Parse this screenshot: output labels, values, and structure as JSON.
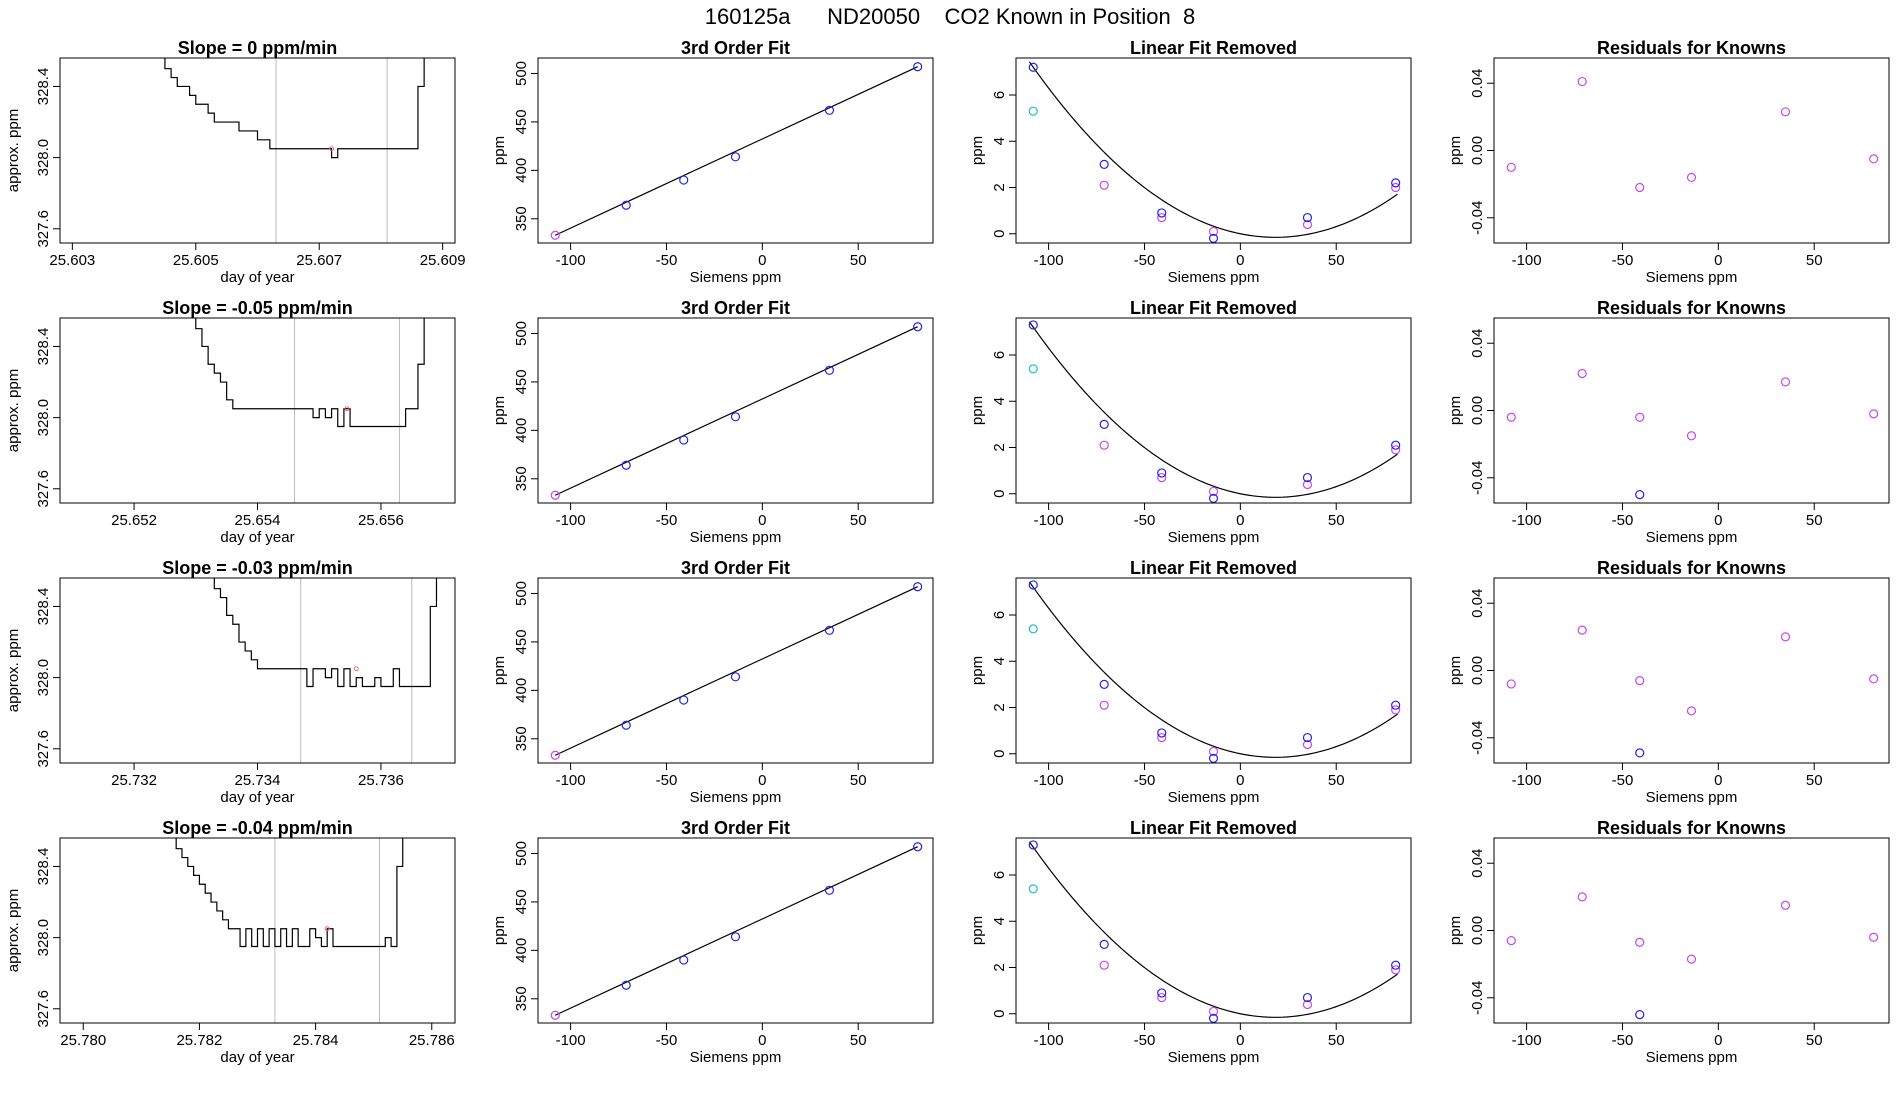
{
  "page": {
    "title": "160125a      ND20050    CO2 Known in Position  8"
  },
  "chart_data": {
    "type": "panel-grid",
    "rows": [
      {
        "slope_panel": {
          "type": "line",
          "title": "Slope =  0  ppm/min",
          "xlabel": "day of year",
          "ylabel": "approx. ppm",
          "xlim": [
            25.6028,
            25.6092
          ],
          "ylim": [
            327.52,
            328.56
          ],
          "xticks": [
            "25.603",
            "25.605",
            "25.607",
            "25.609"
          ],
          "yticks": [
            "327.6",
            "328.0",
            "328.4"
          ],
          "vlines": [
            25.6063,
            25.6081
          ],
          "x": [
            25.6044,
            25.6045,
            25.6046,
            25.6047,
            25.6048,
            25.6049,
            25.605,
            25.6051,
            25.6052,
            25.6053,
            25.6054,
            25.6056,
            25.6057,
            25.6059,
            25.606,
            25.6062,
            25.607,
            25.6071,
            25.6072,
            25.6073,
            25.6074,
            25.6076,
            25.608,
            25.6082,
            25.6084,
            25.6085,
            25.6086,
            25.6087
          ],
          "y": [
            328.6,
            328.5,
            328.45,
            328.4,
            328.4,
            328.35,
            328.3,
            328.3,
            328.25,
            328.2,
            328.2,
            328.2,
            328.15,
            328.15,
            328.1,
            328.05,
            328.05,
            328.05,
            328.0,
            328.05,
            328.05,
            328.05,
            328.05,
            328.05,
            328.05,
            328.05,
            328.4,
            328.6
          ]
        },
        "fit_panel": {
          "type": "scatter+line",
          "title": "3rd Order Fit",
          "xlabel": "Siemens ppm",
          "ylabel": "ppm",
          "xlim": [
            -117,
            89
          ],
          "ylim": [
            325,
            516
          ],
          "xticks": [
            "-100",
            "-50",
            "0",
            "50"
          ],
          "yticks": [
            "350",
            "400",
            "450",
            "500"
          ],
          "x": [
            -108,
            -71,
            -41,
            -14,
            35,
            81
          ],
          "y": [
            333,
            364,
            390,
            414,
            462,
            507
          ]
        },
        "linear_panel": {
          "type": "scatter+curve",
          "title": "Linear Fit Removed",
          "xlabel": "Siemens ppm",
          "ylabel": "ppm",
          "xlim": [
            -117,
            89
          ],
          "ylim": [
            -0.4,
            7.6
          ],
          "xticks": [
            "-100",
            "-50",
            "0",
            "50"
          ],
          "yticks": [
            "0",
            "2",
            "4",
            "6"
          ],
          "blue_x": [
            -108,
            -71,
            -41,
            -14,
            35,
            81
          ],
          "blue_y": [
            7.2,
            3.0,
            0.9,
            -0.2,
            0.7,
            2.2
          ],
          "purple_x": [
            -71,
            -41,
            -14,
            35,
            81
          ],
          "purple_y": [
            2.1,
            0.7,
            0.1,
            0.4,
            2.0
          ],
          "cyan_x": [
            -108
          ],
          "cyan_y": [
            5.3
          ]
        },
        "residual_panel": {
          "type": "scatter",
          "title": "Residuals for Knowns",
          "xlabel": "Siemens ppm",
          "ylabel": "ppm",
          "xlim": [
            -117,
            89
          ],
          "ylim": [
            -0.055,
            0.055
          ],
          "xticks": [
            "-100",
            "-50",
            "0",
            "50"
          ],
          "yticks": [
            "-0.04",
            "0.00",
            "0.04"
          ],
          "purple_x": [
            -108,
            -71,
            -41,
            -14,
            35,
            81
          ],
          "purple_y": [
            -0.01,
            0.041,
            -0.022,
            -0.016,
            0.023,
            -0.005
          ],
          "blue_x": [],
          "blue_y": []
        }
      },
      {
        "slope_panel": {
          "type": "line",
          "title": "Slope =  -0.05  ppm/min",
          "xlabel": "day of year",
          "ylabel": "approx. ppm",
          "xlim": [
            25.6508,
            25.6572
          ],
          "ylim": [
            327.52,
            328.56
          ],
          "xticks": [
            "25.652",
            "25.654",
            "25.656"
          ],
          "yticks": [
            "327.6",
            "328.0",
            "328.4"
          ],
          "vlines": [
            25.6546,
            25.6563
          ],
          "x": [
            25.6529,
            25.653,
            25.6531,
            25.6532,
            25.6533,
            25.6534,
            25.6535,
            25.6536,
            25.6541,
            25.6542,
            25.6543,
            25.6547,
            25.6548,
            25.6549,
            25.655,
            25.6551,
            25.6552,
            25.6553,
            25.6554,
            25.6555,
            25.6556,
            25.6557,
            25.6558,
            25.6563,
            25.6564,
            25.6565,
            25.6566,
            25.6567
          ],
          "y": [
            328.6,
            328.5,
            328.4,
            328.3,
            328.25,
            328.2,
            328.1,
            328.05,
            328.05,
            328.05,
            328.05,
            328.05,
            328.05,
            328.0,
            328.05,
            328.0,
            328.05,
            327.95,
            328.05,
            327.95,
            327.95,
            327.95,
            327.95,
            327.95,
            328.05,
            328.05,
            328.3,
            328.6
          ]
        },
        "fit_panel": {
          "type": "scatter+line",
          "title": "3rd Order Fit",
          "xlabel": "Siemens ppm",
          "ylabel": "ppm",
          "xlim": [
            -117,
            89
          ],
          "ylim": [
            325,
            516
          ],
          "xticks": [
            "-100",
            "-50",
            "0",
            "50"
          ],
          "yticks": [
            "350",
            "400",
            "450",
            "500"
          ],
          "x": [
            -108,
            -71,
            -41,
            -14,
            35,
            81
          ],
          "y": [
            333,
            364,
            390,
            414,
            462,
            507
          ]
        },
        "linear_panel": {
          "type": "scatter+curve",
          "title": "Linear Fit Removed",
          "xlabel": "Siemens ppm",
          "ylabel": "ppm",
          "xlim": [
            -117,
            89
          ],
          "ylim": [
            -0.4,
            7.6
          ],
          "xticks": [
            "-100",
            "-50",
            "0",
            "50"
          ],
          "yticks": [
            "0",
            "2",
            "4",
            "6"
          ],
          "blue_x": [
            -108,
            -71,
            -41,
            -14,
            35,
            81
          ],
          "blue_y": [
            7.3,
            3.0,
            0.9,
            -0.2,
            0.7,
            2.1
          ],
          "purple_x": [
            -71,
            -41,
            -14,
            35,
            81
          ],
          "purple_y": [
            2.1,
            0.7,
            0.1,
            0.4,
            1.9
          ],
          "cyan_x": [
            -108
          ],
          "cyan_y": [
            5.4
          ]
        },
        "residual_panel": {
          "type": "scatter",
          "title": "Residuals for Knowns",
          "xlabel": "Siemens ppm",
          "ylabel": "ppm",
          "xlim": [
            -117,
            89
          ],
          "ylim": [
            -0.055,
            0.055
          ],
          "xticks": [
            "-100",
            "-50",
            "0",
            "50"
          ],
          "yticks": [
            "-0.04",
            "0.00",
            "0.04"
          ],
          "purple_x": [
            -108,
            -71,
            -41,
            -14,
            35,
            81
          ],
          "purple_y": [
            -0.004,
            0.022,
            -0.004,
            -0.015,
            0.017,
            -0.002
          ],
          "blue_x": [
            -41
          ],
          "blue_y": [
            -0.05
          ]
        }
      },
      {
        "slope_panel": {
          "type": "line",
          "title": "Slope =  -0.03  ppm/min",
          "xlabel": "day of year",
          "ylabel": "approx. ppm",
          "xlim": [
            25.7308,
            25.7372
          ],
          "ylim": [
            327.52,
            328.56
          ],
          "xticks": [
            "25.732",
            "25.734",
            "25.736"
          ],
          "yticks": [
            "327.6",
            "328.0",
            "328.4"
          ],
          "vlines": [
            25.7347,
            25.7365
          ],
          "x": [
            25.7332,
            25.7333,
            25.7334,
            25.7335,
            25.7336,
            25.7337,
            25.7338,
            25.7339,
            25.734,
            25.7341,
            25.7347,
            25.7348,
            25.7349,
            25.735,
            25.7351,
            25.7352,
            25.7353,
            25.7354,
            25.7355,
            25.7356,
            25.7357,
            25.7358,
            25.7359,
            25.736,
            25.7361,
            25.7362,
            25.7363,
            25.7364,
            25.7365,
            25.7367,
            25.7368,
            25.7369
          ],
          "y": [
            328.6,
            328.5,
            328.45,
            328.35,
            328.3,
            328.2,
            328.15,
            328.1,
            328.05,
            328.05,
            328.05,
            327.95,
            328.05,
            328.05,
            328.0,
            328.05,
            327.95,
            328.05,
            327.95,
            328.0,
            327.95,
            327.95,
            328.0,
            327.95,
            327.95,
            328.05,
            327.95,
            327.95,
            327.95,
            327.95,
            328.4,
            328.6
          ]
        },
        "fit_panel": {
          "type": "scatter+line",
          "title": "3rd Order Fit",
          "xlabel": "Siemens ppm",
          "ylabel": "ppm",
          "xlim": [
            -117,
            89
          ],
          "ylim": [
            325,
            516
          ],
          "xticks": [
            "-100",
            "-50",
            "0",
            "50"
          ],
          "yticks": [
            "350",
            "400",
            "450",
            "500"
          ],
          "x": [
            -108,
            -71,
            -41,
            -14,
            35,
            81
          ],
          "y": [
            333,
            364,
            390,
            414,
            462,
            507
          ]
        },
        "linear_panel": {
          "type": "scatter+curve",
          "title": "Linear Fit Removed",
          "xlabel": "Siemens ppm",
          "ylabel": "ppm",
          "xlim": [
            -117,
            89
          ],
          "ylim": [
            -0.4,
            7.6
          ],
          "xticks": [
            "-100",
            "-50",
            "0",
            "50"
          ],
          "yticks": [
            "0",
            "2",
            "4",
            "6"
          ],
          "blue_x": [
            -108,
            -71,
            -41,
            -14,
            35,
            81
          ],
          "blue_y": [
            7.3,
            3.0,
            0.9,
            -0.2,
            0.7,
            2.1
          ],
          "purple_x": [
            -71,
            -41,
            -14,
            35,
            81
          ],
          "purple_y": [
            2.1,
            0.7,
            0.1,
            0.4,
            1.9
          ],
          "cyan_x": [
            -108
          ],
          "cyan_y": [
            5.4
          ]
        },
        "residual_panel": {
          "type": "scatter",
          "title": "Residuals for Knowns",
          "xlabel": "Siemens ppm",
          "ylabel": "ppm",
          "xlim": [
            -117,
            89
          ],
          "ylim": [
            -0.055,
            0.055
          ],
          "xticks": [
            "-100",
            "-50",
            "0",
            "50"
          ],
          "yticks": [
            "-0.04",
            "0.00",
            "0.04"
          ],
          "purple_x": [
            -108,
            -71,
            -41,
            -14,
            35,
            81
          ],
          "purple_y": [
            -0.008,
            0.024,
            -0.006,
            -0.024,
            0.02,
            -0.005
          ],
          "blue_x": [
            -41
          ],
          "blue_y": [
            -0.049
          ]
        }
      },
      {
        "slope_panel": {
          "type": "line",
          "title": "Slope =  -0.04  ppm/min",
          "xlabel": "day of year",
          "ylabel": "approx. ppm",
          "xlim": [
            25.7796,
            25.7864
          ],
          "ylim": [
            327.52,
            328.56
          ],
          "xticks": [
            "25.780",
            "25.782",
            "25.784",
            "25.786"
          ],
          "yticks": [
            "327.6",
            "328.0",
            "328.4"
          ],
          "vlines": [
            25.7833,
            25.7851
          ],
          "x": [
            25.7815,
            25.7816,
            25.7817,
            25.7818,
            25.7819,
            25.782,
            25.7821,
            25.7822,
            25.7823,
            25.7824,
            25.7825,
            25.7826,
            25.7827,
            25.7828,
            25.7829,
            25.783,
            25.7831,
            25.7832,
            25.7833,
            25.7834,
            25.7835,
            25.7836,
            25.7837,
            25.7838,
            25.7839,
            25.784,
            25.7841,
            25.7842,
            25.7843,
            25.7844,
            25.7845,
            25.7846,
            25.7851,
            25.7852,
            25.7853,
            25.7854,
            25.7855
          ],
          "y": [
            328.6,
            328.5,
            328.45,
            328.4,
            328.35,
            328.3,
            328.25,
            328.2,
            328.15,
            328.1,
            328.05,
            328.05,
            327.95,
            328.05,
            327.95,
            328.05,
            327.95,
            328.05,
            327.95,
            328.05,
            327.95,
            328.05,
            327.95,
            327.95,
            328.05,
            328.0,
            327.95,
            328.05,
            327.95,
            327.95,
            327.95,
            327.95,
            327.95,
            328.0,
            327.95,
            328.4,
            328.6
          ]
        },
        "fit_panel": {
          "type": "scatter+line",
          "title": "3rd Order Fit",
          "xlabel": "Siemens ppm",
          "ylabel": "ppm",
          "xlim": [
            -117,
            89
          ],
          "ylim": [
            325,
            516
          ],
          "xticks": [
            "-100",
            "-50",
            "0",
            "50"
          ],
          "yticks": [
            "350",
            "400",
            "450",
            "500"
          ],
          "x": [
            -108,
            -71,
            -41,
            -14,
            35,
            81
          ],
          "y": [
            333,
            364,
            390,
            414,
            462,
            507
          ]
        },
        "linear_panel": {
          "type": "scatter+curve",
          "title": "Linear Fit Removed",
          "xlabel": "Siemens ppm",
          "ylabel": "ppm",
          "xlim": [
            -117,
            89
          ],
          "ylim": [
            -0.4,
            7.6
          ],
          "xticks": [
            "-100",
            "-50",
            "0",
            "50"
          ],
          "yticks": [
            "0",
            "2",
            "4",
            "6"
          ],
          "blue_x": [
            -108,
            -71,
            -41,
            -14,
            35,
            81
          ],
          "blue_y": [
            7.3,
            3.0,
            0.9,
            -0.2,
            0.7,
            2.1
          ],
          "purple_x": [
            -71,
            -41,
            -14,
            35,
            81
          ],
          "purple_y": [
            2.1,
            0.7,
            0.1,
            0.4,
            1.9
          ],
          "cyan_x": [
            -108
          ],
          "cyan_y": [
            5.4
          ]
        },
        "residual_panel": {
          "type": "scatter",
          "title": "Residuals for Knowns",
          "xlabel": "Siemens ppm",
          "ylabel": "ppm",
          "xlim": [
            -117,
            89
          ],
          "ylim": [
            -0.055,
            0.055
          ],
          "xticks": [
            "-100",
            "-50",
            "0",
            "50"
          ],
          "yticks": [
            "-0.04",
            "0.00",
            "0.04"
          ],
          "purple_x": [
            -108,
            -71,
            -41,
            -14,
            35,
            81
          ],
          "purple_y": [
            -0.006,
            0.02,
            -0.007,
            -0.017,
            0.015,
            -0.004
          ],
          "blue_x": [
            -41
          ],
          "blue_y": [
            -0.05
          ]
        }
      }
    ]
  },
  "colors": {
    "blue": "#2222ee",
    "purple": "#cc44ee",
    "cyan": "#22bbdd",
    "red_marker": "#ff6666",
    "line": "#000000",
    "vline": "#bbbbbb"
  }
}
